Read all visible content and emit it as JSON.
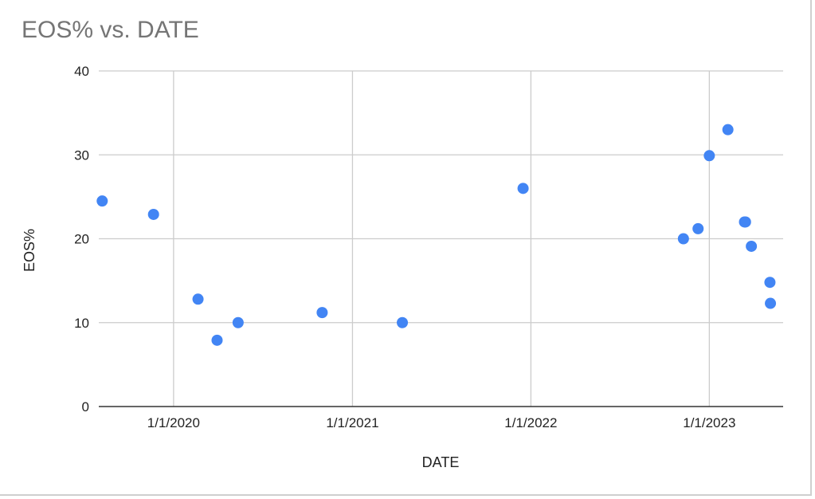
{
  "chart_data": {
    "type": "scatter",
    "title": "EOS% vs. DATE",
    "xlabel": "DATE",
    "ylabel": "EOS%",
    "xlim": [
      "2019-08-01",
      "2023-06-01"
    ],
    "ylim": [
      0,
      40
    ],
    "x_ticks": [
      "1/1/2020",
      "1/1/2021",
      "1/1/2022",
      "1/1/2023"
    ],
    "y_ticks": [
      0,
      10,
      20,
      30,
      40
    ],
    "grid": true,
    "legend": "none",
    "color": "#4285F4",
    "series": [
      {
        "x": [
          "2019-08-08",
          "2019-11-21",
          "2020-02-20",
          "2020-03-30",
          "2020-05-12",
          "2020-10-31",
          "2021-04-13",
          "2021-12-16",
          "2022-11-09",
          "2022-12-09",
          "2023-01-01",
          "2023-02-08",
          "2023-03-14",
          "2023-03-16",
          "2023-03-28",
          "2023-05-05",
          "2023-05-06"
        ],
        "y": [
          24.5,
          22.9,
          12.8,
          7.9,
          10.0,
          11.2,
          10.0,
          26.0,
          20.0,
          21.2,
          29.9,
          33.0,
          22.0,
          22.0,
          19.1,
          14.8,
          12.3
        ]
      }
    ]
  }
}
